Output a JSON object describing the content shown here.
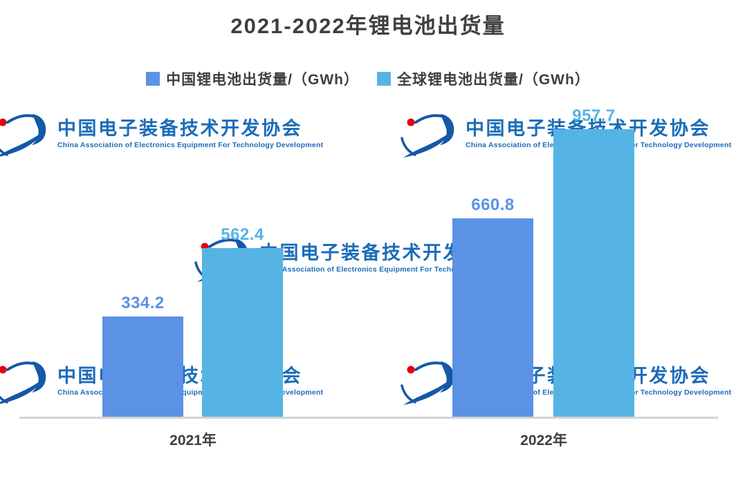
{
  "title": "2021-2022年锂电池出货量",
  "legend": {
    "items": [
      {
        "label": "中国锂电池出货量/（GWh）",
        "color": "#5B92E5"
      },
      {
        "label": "全球锂电池出货量/（GWh）",
        "color": "#55B4E4"
      }
    ]
  },
  "chart_data": {
    "type": "bar",
    "categories": [
      "2021年",
      "2022年"
    ],
    "series": [
      {
        "name": "中国锂电池出货量/（GWh）",
        "values": [
          334.2,
          660.8
        ],
        "color": "#5B92E5"
      },
      {
        "name": "全球锂电池出货量/（GWh）",
        "values": [
          562.4,
          957.7
        ],
        "color": "#55B4E4"
      }
    ],
    "title": "2021-2022年锂电池出货量",
    "xlabel": "",
    "ylabel": "",
    "ylim": [
      0,
      1000
    ],
    "grid": false,
    "y_axis_visible": false,
    "legend_position": "top",
    "data_labels": true,
    "data_label_color": "match-series",
    "baseline_color": "#D3D3D3"
  },
  "watermark": {
    "zh": "中国电子装备技术开发协会",
    "en": "China Association of Electronics Equipment For Technology Development",
    "text_color": "#1B6CB9",
    "logo_blue": "#1558A6",
    "logo_red": "#E60012"
  },
  "colors": {
    "axis_line": "#D3D3D3",
    "heading_text": "#3F3F3F",
    "background": "#FFFFFF"
  }
}
